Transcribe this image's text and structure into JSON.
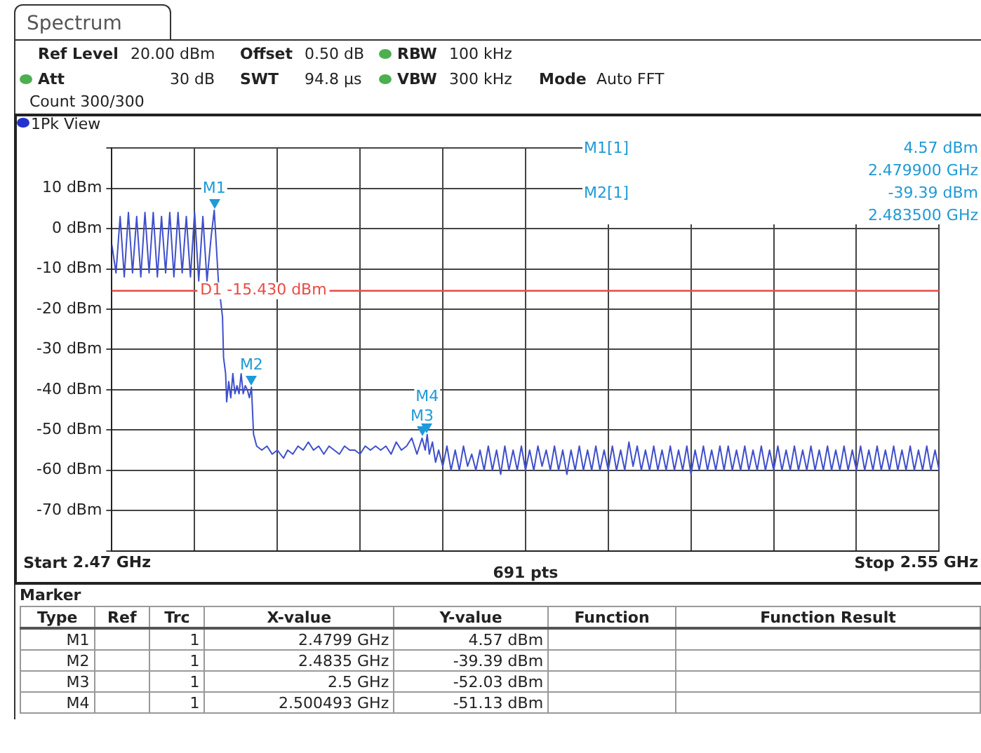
{
  "chart_data": {
    "type": "line",
    "title": "Spectrum",
    "xlim": [
      2.47,
      2.55
    ],
    "xticks": [
      {
        "value": 2.47,
        "label": "2.47 GHz"
      },
      {
        "value": 2.478,
        "label": null
      },
      {
        "value": 2.486,
        "label": null
      },
      {
        "value": 2.494,
        "label": null
      },
      {
        "value": 2.502,
        "label": null
      },
      {
        "value": 2.51,
        "label": null
      },
      {
        "value": 2.518,
        "label": null
      },
      {
        "value": 2.526,
        "label": null
      },
      {
        "value": 2.534,
        "label": null
      },
      {
        "value": 2.542,
        "label": null
      },
      {
        "value": 2.55,
        "label": "2.55 GHz"
      }
    ],
    "ylim": [
      -80,
      20
    ],
    "yticks": [
      {
        "value": 20,
        "label": null
      },
      {
        "value": 10,
        "label": "10 dBm"
      },
      {
        "value": 0,
        "label": "0 dBm"
      },
      {
        "value": -10,
        "label": "-10 dBm"
      },
      {
        "value": -20,
        "label": "-20 dBm"
      },
      {
        "value": -30,
        "label": "-30 dBm"
      },
      {
        "value": -40,
        "label": "-40 dBm"
      },
      {
        "value": -50,
        "label": "-50 dBm"
      },
      {
        "value": -60,
        "label": "-60 dBm"
      },
      {
        "value": -70,
        "label": "-70 dBm"
      },
      {
        "value": -80,
        "label": null
      }
    ],
    "grid": true,
    "marker": "none",
    "ref_lines": [
      {
        "axis": "y",
        "value": -15.43,
        "label": "D1 -15.430 dBm",
        "color": "#e84b45"
      }
    ],
    "series": [
      {
        "color": "#3f4fcc",
        "x": [
          2.47,
          2.4704,
          2.4708,
          2.4712,
          2.4716,
          2.472,
          2.4724,
          2.4728,
          2.4732,
          2.4736,
          2.474,
          2.4744,
          2.4748,
          2.4752,
          2.4756,
          2.476,
          2.4764,
          2.4768,
          2.4772,
          2.4776,
          2.478,
          2.4784,
          2.4788,
          2.4792,
          2.4796,
          2.4799,
          2.4803,
          2.4807,
          2.4808,
          2.481,
          2.4811,
          2.4813,
          2.4815,
          2.4817,
          2.4819,
          2.4821,
          2.4823,
          2.4825,
          2.4827,
          2.4829,
          2.4831,
          2.4833,
          2.4835,
          2.4837,
          2.484,
          2.4845,
          2.485,
          2.4855,
          2.486,
          2.4866,
          2.487,
          2.4875,
          2.488,
          2.4885,
          2.489,
          2.4895,
          2.49,
          2.4905,
          2.491,
          2.4915,
          2.492,
          2.4925,
          2.493,
          2.4935,
          2.494,
          2.4945,
          2.495,
          2.4955,
          2.496,
          2.4965,
          2.497,
          2.4975,
          2.498,
          2.4985,
          2.499,
          2.4995,
          2.5,
          2.5003,
          2.500493,
          2.5007,
          2.501,
          2.5013,
          2.5016,
          2.502,
          2.5024,
          2.5028,
          2.5032,
          2.5036,
          2.504,
          2.5044,
          2.5048,
          2.5052,
          2.5056,
          2.506,
          2.5064,
          2.5068,
          2.5072,
          2.5076,
          2.508,
          2.5084,
          2.5088,
          2.5092,
          2.5096,
          2.51,
          2.5104,
          2.5108,
          2.5112,
          2.5116,
          2.512,
          2.5124,
          2.5128,
          2.5132,
          2.5136,
          2.514,
          2.5144,
          2.5148,
          2.5152,
          2.5156,
          2.516,
          2.5164,
          2.5168,
          2.5172,
          2.5176,
          2.518,
          2.5184,
          2.5188,
          2.5192,
          2.5196,
          2.52,
          2.5204,
          2.5208,
          2.5212,
          2.5216,
          2.522,
          2.5224,
          2.5228,
          2.5232,
          2.5236,
          2.524,
          2.5244,
          2.5248,
          2.5252,
          2.5256,
          2.526,
          2.5264,
          2.5268,
          2.5272,
          2.5276,
          2.528,
          2.5284,
          2.5288,
          2.5292,
          2.5296,
          2.53,
          2.5304,
          2.5308,
          2.5312,
          2.5316,
          2.532,
          2.5324,
          2.5328,
          2.5332,
          2.5336,
          2.534,
          2.5344,
          2.5348,
          2.5352,
          2.5356,
          2.536,
          2.5364,
          2.5368,
          2.5372,
          2.5376,
          2.538,
          2.5384,
          2.5388,
          2.5392,
          2.5396,
          2.54,
          2.5404,
          2.5408,
          2.5412,
          2.5416,
          2.542,
          2.5424,
          2.5428,
          2.5432,
          2.5436,
          2.544,
          2.5444,
          2.5448,
          2.5452,
          2.5456,
          2.546,
          2.5464,
          2.5468,
          2.5472,
          2.5476,
          2.548,
          2.5484,
          2.5488,
          2.5492,
          2.5496,
          2.55
        ],
        "values": [
          -4,
          -11,
          3,
          -12,
          4,
          -11,
          3,
          -12,
          4,
          -11,
          4,
          -12,
          3,
          -11,
          4,
          -12,
          4,
          -11,
          3,
          -12,
          4,
          -13,
          3,
          -13,
          -2,
          4.57,
          -13,
          -22,
          -32,
          -36,
          -43,
          -38,
          -42,
          -36,
          -41,
          -39,
          -41,
          -36,
          -41,
          -39,
          -40,
          -42,
          -39.39,
          -51,
          -54,
          -55,
          -54,
          -56,
          -55,
          -57,
          -55,
          -56,
          -54,
          -55,
          -53,
          -55,
          -54,
          -56,
          -54,
          -55,
          -56,
          -54,
          -55,
          -55,
          -56,
          -54,
          -55,
          -54,
          -55,
          -54,
          -56,
          -53,
          -55,
          -54,
          -52,
          -56,
          -52.03,
          -55,
          -51.13,
          -56,
          -53,
          -58,
          -55,
          -59,
          -54,
          -60,
          -55,
          -60,
          -54,
          -59,
          -56,
          -60,
          -55,
          -60,
          -54,
          -60,
          -55,
          -61,
          -54,
          -60,
          -55,
          -60,
          -54,
          -60,
          -55,
          -60,
          -54,
          -59,
          -55,
          -60,
          -54,
          -60,
          -55,
          -61,
          -55,
          -60,
          -54,
          -60,
          -55,
          -60,
          -54,
          -60,
          -55,
          -60,
          -54,
          -60,
          -55,
          -60,
          -53,
          -59,
          -54,
          -60,
          -55,
          -60,
          -54,
          -60,
          -55,
          -60,
          -54,
          -60,
          -55,
          -60,
          -54,
          -61,
          -55,
          -60,
          -54,
          -60,
          -55,
          -60,
          -54,
          -60,
          -54,
          -60,
          -55,
          -60,
          -54,
          -60,
          -55,
          -60,
          -54,
          -60,
          -55,
          -60,
          -54,
          -60,
          -55,
          -60,
          -54,
          -60,
          -55,
          -60,
          -54,
          -60,
          -55,
          -60,
          -54,
          -60,
          -55,
          -60,
          -54,
          -60,
          -55,
          -60,
          -54,
          -60,
          -55,
          -60,
          -54,
          -60,
          -55,
          -60,
          -54,
          -60,
          -55,
          -60,
          -54,
          -60,
          -55,
          -60,
          -54,
          -60,
          -55,
          -60
        ]
      }
    ],
    "annotations": [
      "Ref Level",
      "20.00 dBm",
      "Offset",
      "0.50 dB",
      "RBW",
      "100 kHz",
      "Att",
      "30 dB",
      "SWT",
      "94.8 µs",
      "VBW",
      "300 kHz",
      "Mode",
      "Auto FFT",
      "Count 300/300",
      "1Pk View",
      "M1[1]",
      "4.57 dBm",
      "2.479900 GHz",
      "M2[1]",
      "-39.39 dBm",
      "2.483500 GHz",
      "Start",
      "691 pts",
      "Stop",
      "Marker",
      "Type",
      "Ref",
      "Trc",
      "X-value",
      "Y-value",
      "Function",
      "Function Result",
      "M1",
      "1",
      "2.4799 GHz",
      "4.57 dBm",
      "M2",
      "1",
      "2.4835 GHz",
      "-39.39 dBm",
      "M3",
      "1",
      "2.5 GHz",
      "-52.03 dBm",
      "M4",
      "1",
      "2.500493 GHz",
      "-51.13 dBm",
      {
        "text": "M1",
        "x": 2.4799,
        "y": 4.57
      },
      {
        "text": "M2",
        "x": 2.4835,
        "y": -39.39
      },
      {
        "text": "M3",
        "x": 2.5,
        "y": -52.03
      },
      {
        "text": "M4",
        "x": 2.500493,
        "y": -51.13
      }
    ]
  }
}
